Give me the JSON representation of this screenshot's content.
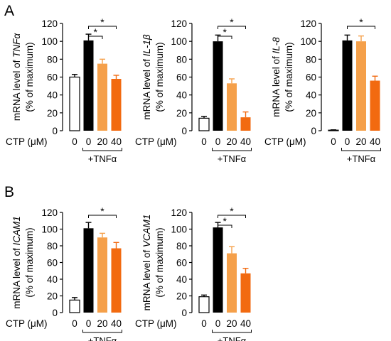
{
  "panels": [
    {
      "letter": "A"
    },
    {
      "letter": "B"
    }
  ],
  "chart_data": [
    {
      "type": "bar",
      "panel": "A",
      "ylabel_line1_prefix": "mRNA level of ",
      "ylabel_line1_gene": "TNFα",
      "ylabel_line2": "(% of maximum)",
      "categories": [
        "0",
        "0",
        "20",
        "40"
      ],
      "values": [
        60,
        101,
        75,
        58
      ],
      "errors": [
        3,
        7,
        5,
        4
      ],
      "ylim": [
        0,
        120
      ],
      "yticks": [
        0,
        20,
        40,
        60,
        80,
        100,
        120
      ],
      "x_prefix": "CTP (μM)",
      "treatment_label": "+TNFα",
      "significance": [
        {
          "from": 1,
          "to": 2,
          "label": "*"
        },
        {
          "from": 1,
          "to": 3,
          "label": "*"
        }
      ]
    },
    {
      "type": "bar",
      "panel": "A",
      "ylabel_line1_prefix": "mRNA level of ",
      "ylabel_line1_gene": "IL-1β",
      "ylabel_line2": "(% of maximum)",
      "categories": [
        "0",
        "0",
        "20",
        "40"
      ],
      "values": [
        14,
        100,
        53,
        15
      ],
      "errors": [
        2,
        7,
        5,
        6
      ],
      "ylim": [
        0,
        120
      ],
      "yticks": [
        0,
        20,
        40,
        60,
        80,
        100,
        120
      ],
      "x_prefix": "CTP (μM)",
      "treatment_label": "+TNFα",
      "significance": [
        {
          "from": 1,
          "to": 2,
          "label": "*"
        },
        {
          "from": 1,
          "to": 3,
          "label": "*"
        }
      ]
    },
    {
      "type": "bar",
      "panel": "A",
      "ylabel_line1_prefix": "mRNA level of ",
      "ylabel_line1_gene": "IL-8",
      "ylabel_line2": "(% of maximum)",
      "categories": [
        "0",
        "0",
        "20",
        "40"
      ],
      "values": [
        0.5,
        101,
        100,
        56
      ],
      "errors": [
        0.5,
        6,
        6,
        5
      ],
      "ylim": [
        0,
        120
      ],
      "yticks": [
        0,
        20,
        40,
        60,
        80,
        100,
        120
      ],
      "x_prefix": "CTP (μM)",
      "treatment_label": "+TNFα",
      "significance": [
        {
          "from": 1,
          "to": 3,
          "label": "*"
        }
      ]
    },
    {
      "type": "bar",
      "panel": "B",
      "ylabel_line1_prefix": "mRNA level of ",
      "ylabel_line1_gene": "ICAM1",
      "ylabel_line2": "(% of maximum)",
      "categories": [
        "0",
        "0",
        "20",
        "40"
      ],
      "values": [
        15,
        101,
        90,
        77
      ],
      "errors": [
        3,
        7,
        5,
        7
      ],
      "ylim": [
        0,
        120
      ],
      "yticks": [
        0,
        20,
        40,
        60,
        80,
        100,
        120
      ],
      "x_prefix": "CTP (μM)",
      "treatment_label": "+TNFα",
      "significance": [
        {
          "from": 1,
          "to": 3,
          "label": "*"
        }
      ]
    },
    {
      "type": "bar",
      "panel": "B",
      "ylabel_line1_prefix": "mRNA level of ",
      "ylabel_line1_gene": "VCAM1",
      "ylabel_line2": "(% of maximum)",
      "categories": [
        "0",
        "0",
        "20",
        "40"
      ],
      "values": [
        19,
        102,
        71,
        47
      ],
      "errors": [
        2,
        6,
        8,
        6
      ],
      "ylim": [
        0,
        120
      ],
      "yticks": [
        0,
        20,
        40,
        60,
        80,
        100,
        120
      ],
      "x_prefix": "CTP (μM)",
      "treatment_label": "+TNFα",
      "significance": [
        {
          "from": 1,
          "to": 2,
          "label": "*"
        },
        {
          "from": 1,
          "to": 3,
          "label": "*"
        }
      ]
    }
  ],
  "colors": {
    "control_fill": "#ffffff",
    "tnf_only": "#000000",
    "ctp_20": "#f5a04a",
    "ctp_40": "#f26a10",
    "axis": "#000000"
  }
}
